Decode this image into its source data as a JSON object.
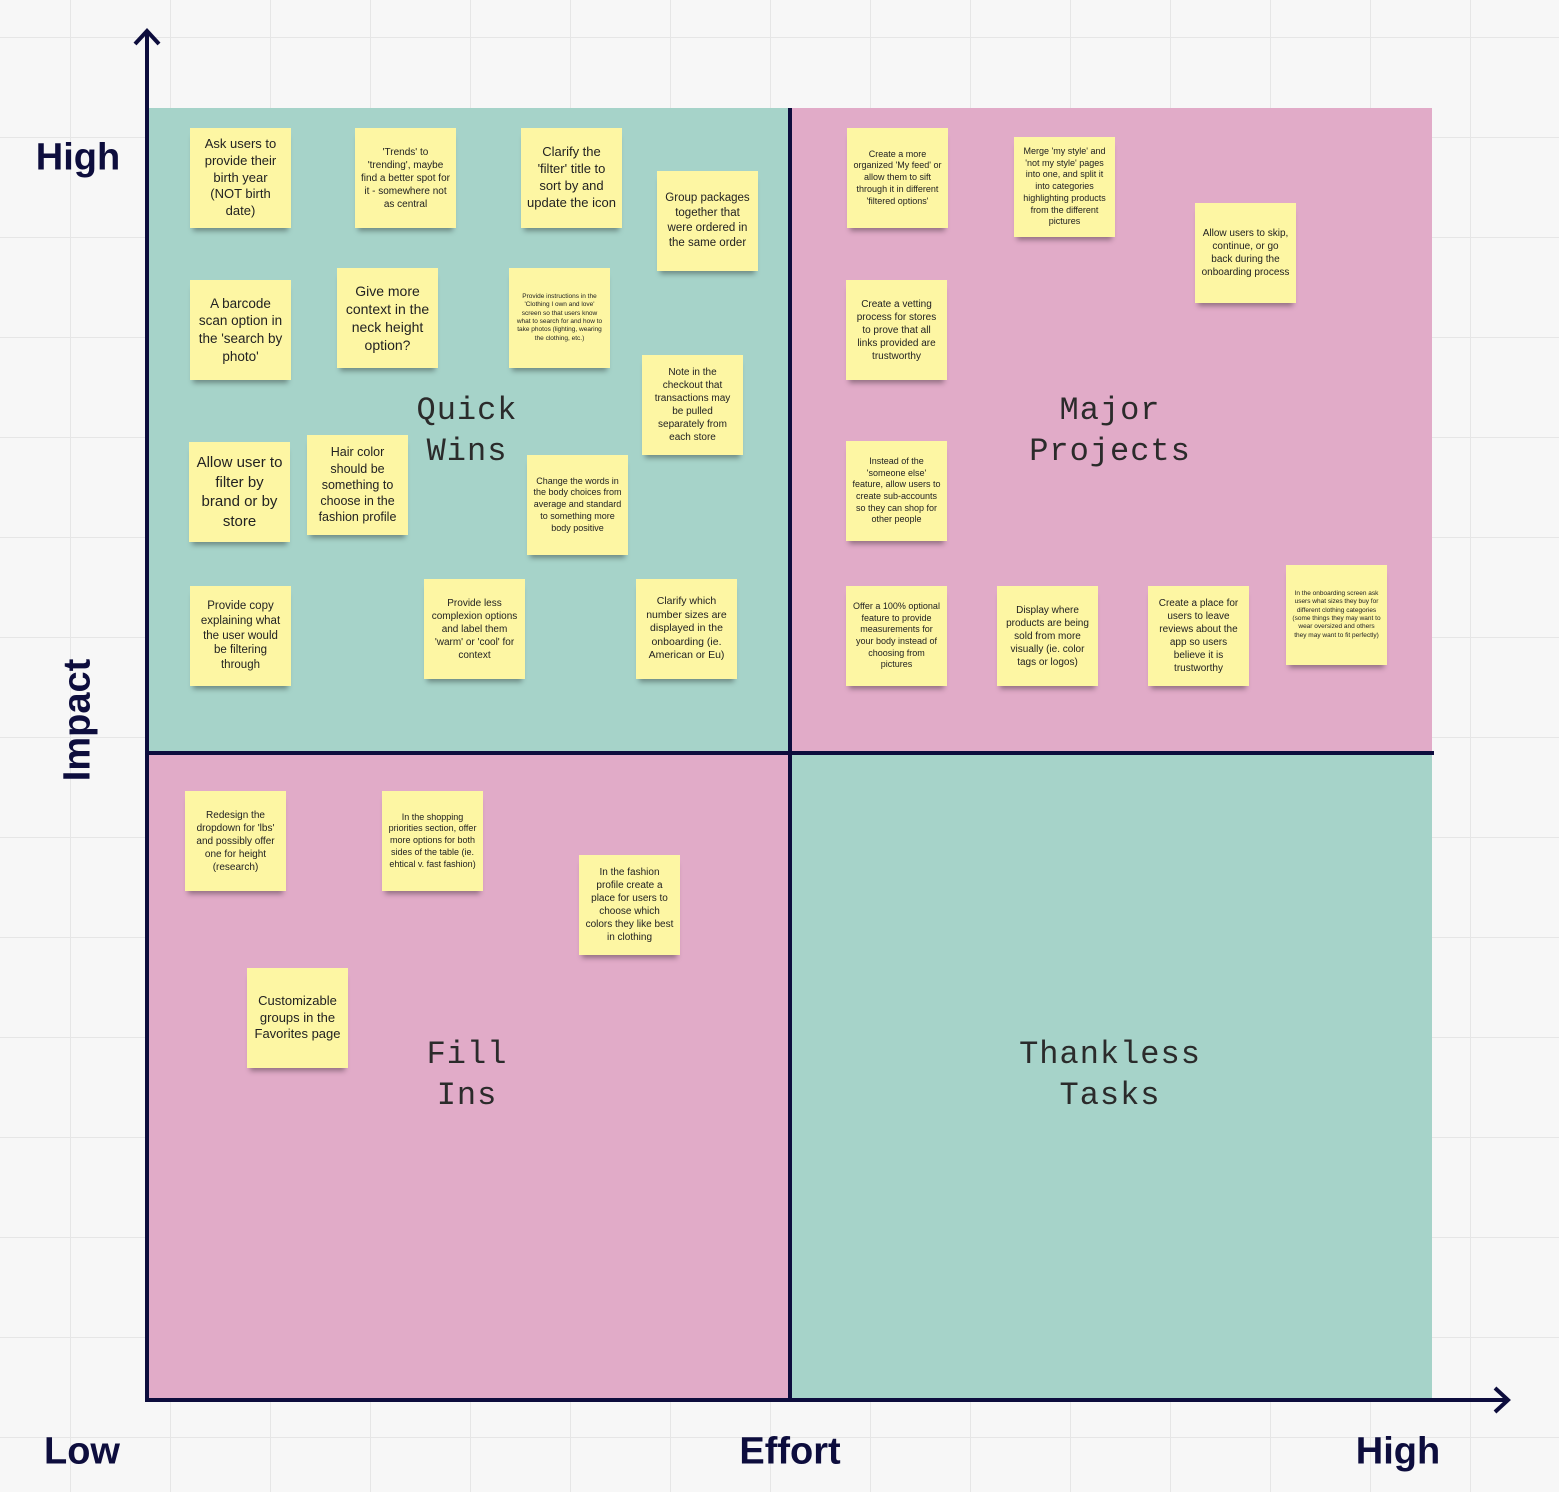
{
  "axes": {
    "y_label": "Impact",
    "y_high": "High",
    "x_low": "Low",
    "x_label": "Effort",
    "x_high": "High"
  },
  "quadrants": [
    {
      "label": "Quick Wins",
      "notes": [
        "Ask users to provide their birth year (NOT birth date)",
        "'Trends' to 'trending', maybe find a better spot for it - somewhere not as central",
        "Clarify the 'filter' title to sort by and update the icon",
        "Group packages together that were ordered in the same order",
        "A barcode scan option in the 'search by photo'",
        "Give more context in the neck height option?",
        "Provide instructions in the 'Clothing I own and love' screen so that users know what to search for and how to take photos (lighting, wearing the clothing, etc.)",
        "Note in the checkout that transactions may be pulled separately from each store",
        "Allow user to filter by brand or by store",
        "Hair color should be something to choose in the fashion profile",
        "Change the words in the body choices from average and standard to something more body positive",
        "Provide copy explaining what the user would be filtering through",
        "Provide less complexion options and label them 'warm' or 'cool' for context",
        "Clarify which number sizes are displayed in the onboarding (ie. American or Eu)"
      ]
    },
    {
      "label": "Major Projects",
      "notes": [
        "Create a more organized 'My feed' or allow them to sift through it in different 'filtered options'",
        "Merge 'my style' and 'not my style' pages into one, and split it into categories highlighting products from the different pictures",
        "Allow users to skip, continue, or go back during the onboarding process",
        "Create a vetting process for stores to prove that all links provided are trustworthy",
        "Instead of the 'someone else' feature, allow users to create sub-accounts so they can shop for other people",
        "Offer a 100% optional feature to provide measurements for your body instead of choosing from pictures",
        "Display where products are being sold from more visually (ie. color tags or logos)",
        "Create a place for users to leave reviews about the app so users believe it is trustworthy",
        "In the onboarding screen ask users what sizes they buy for different clothing categories (some things they may want to wear oversized and others they may want to fit perfectly)"
      ]
    },
    {
      "label": "Fill Ins",
      "notes": [
        "Redesign the dropdown for 'lbs' and possibly offer one for height (research)",
        "In the shopping priorities section, offer more options for both sides of the table (ie. ehtical v. fast fashion)",
        "In the fashion profile create a place for users to choose which colors they like best in clothing",
        "Customizable groups in the Favorites page"
      ]
    },
    {
      "label": "Thankless Tasks",
      "notes": []
    }
  ]
}
